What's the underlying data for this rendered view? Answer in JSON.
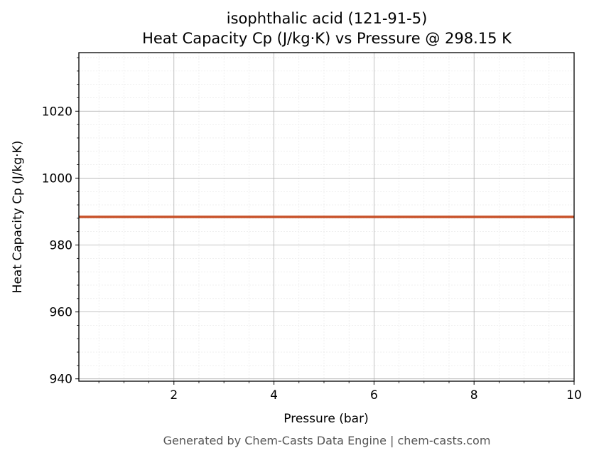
{
  "chart_data": {
    "type": "line",
    "title": "isophthalic acid (121-91-5)",
    "subtitle": "Heat Capacity Cp (J/kg·K) vs Pressure @ 298.15 K",
    "xlabel": "Pressure (bar)",
    "ylabel": "Heat Capacity Cp (J/kg·K)",
    "xlim": [
      0.1,
      10
    ],
    "ylim": [
      939.3,
      1037.5
    ],
    "xticks": [
      2,
      4,
      6,
      8,
      10
    ],
    "yticks": [
      940,
      960,
      980,
      1000,
      1020
    ],
    "grid": true,
    "series": [
      {
        "x": [
          0.1,
          10
        ],
        "y": [
          988.4,
          988.4
        ],
        "color": "#c8522a"
      }
    ]
  },
  "footer": "Generated by Chem-Casts Data Engine | chem-casts.com"
}
